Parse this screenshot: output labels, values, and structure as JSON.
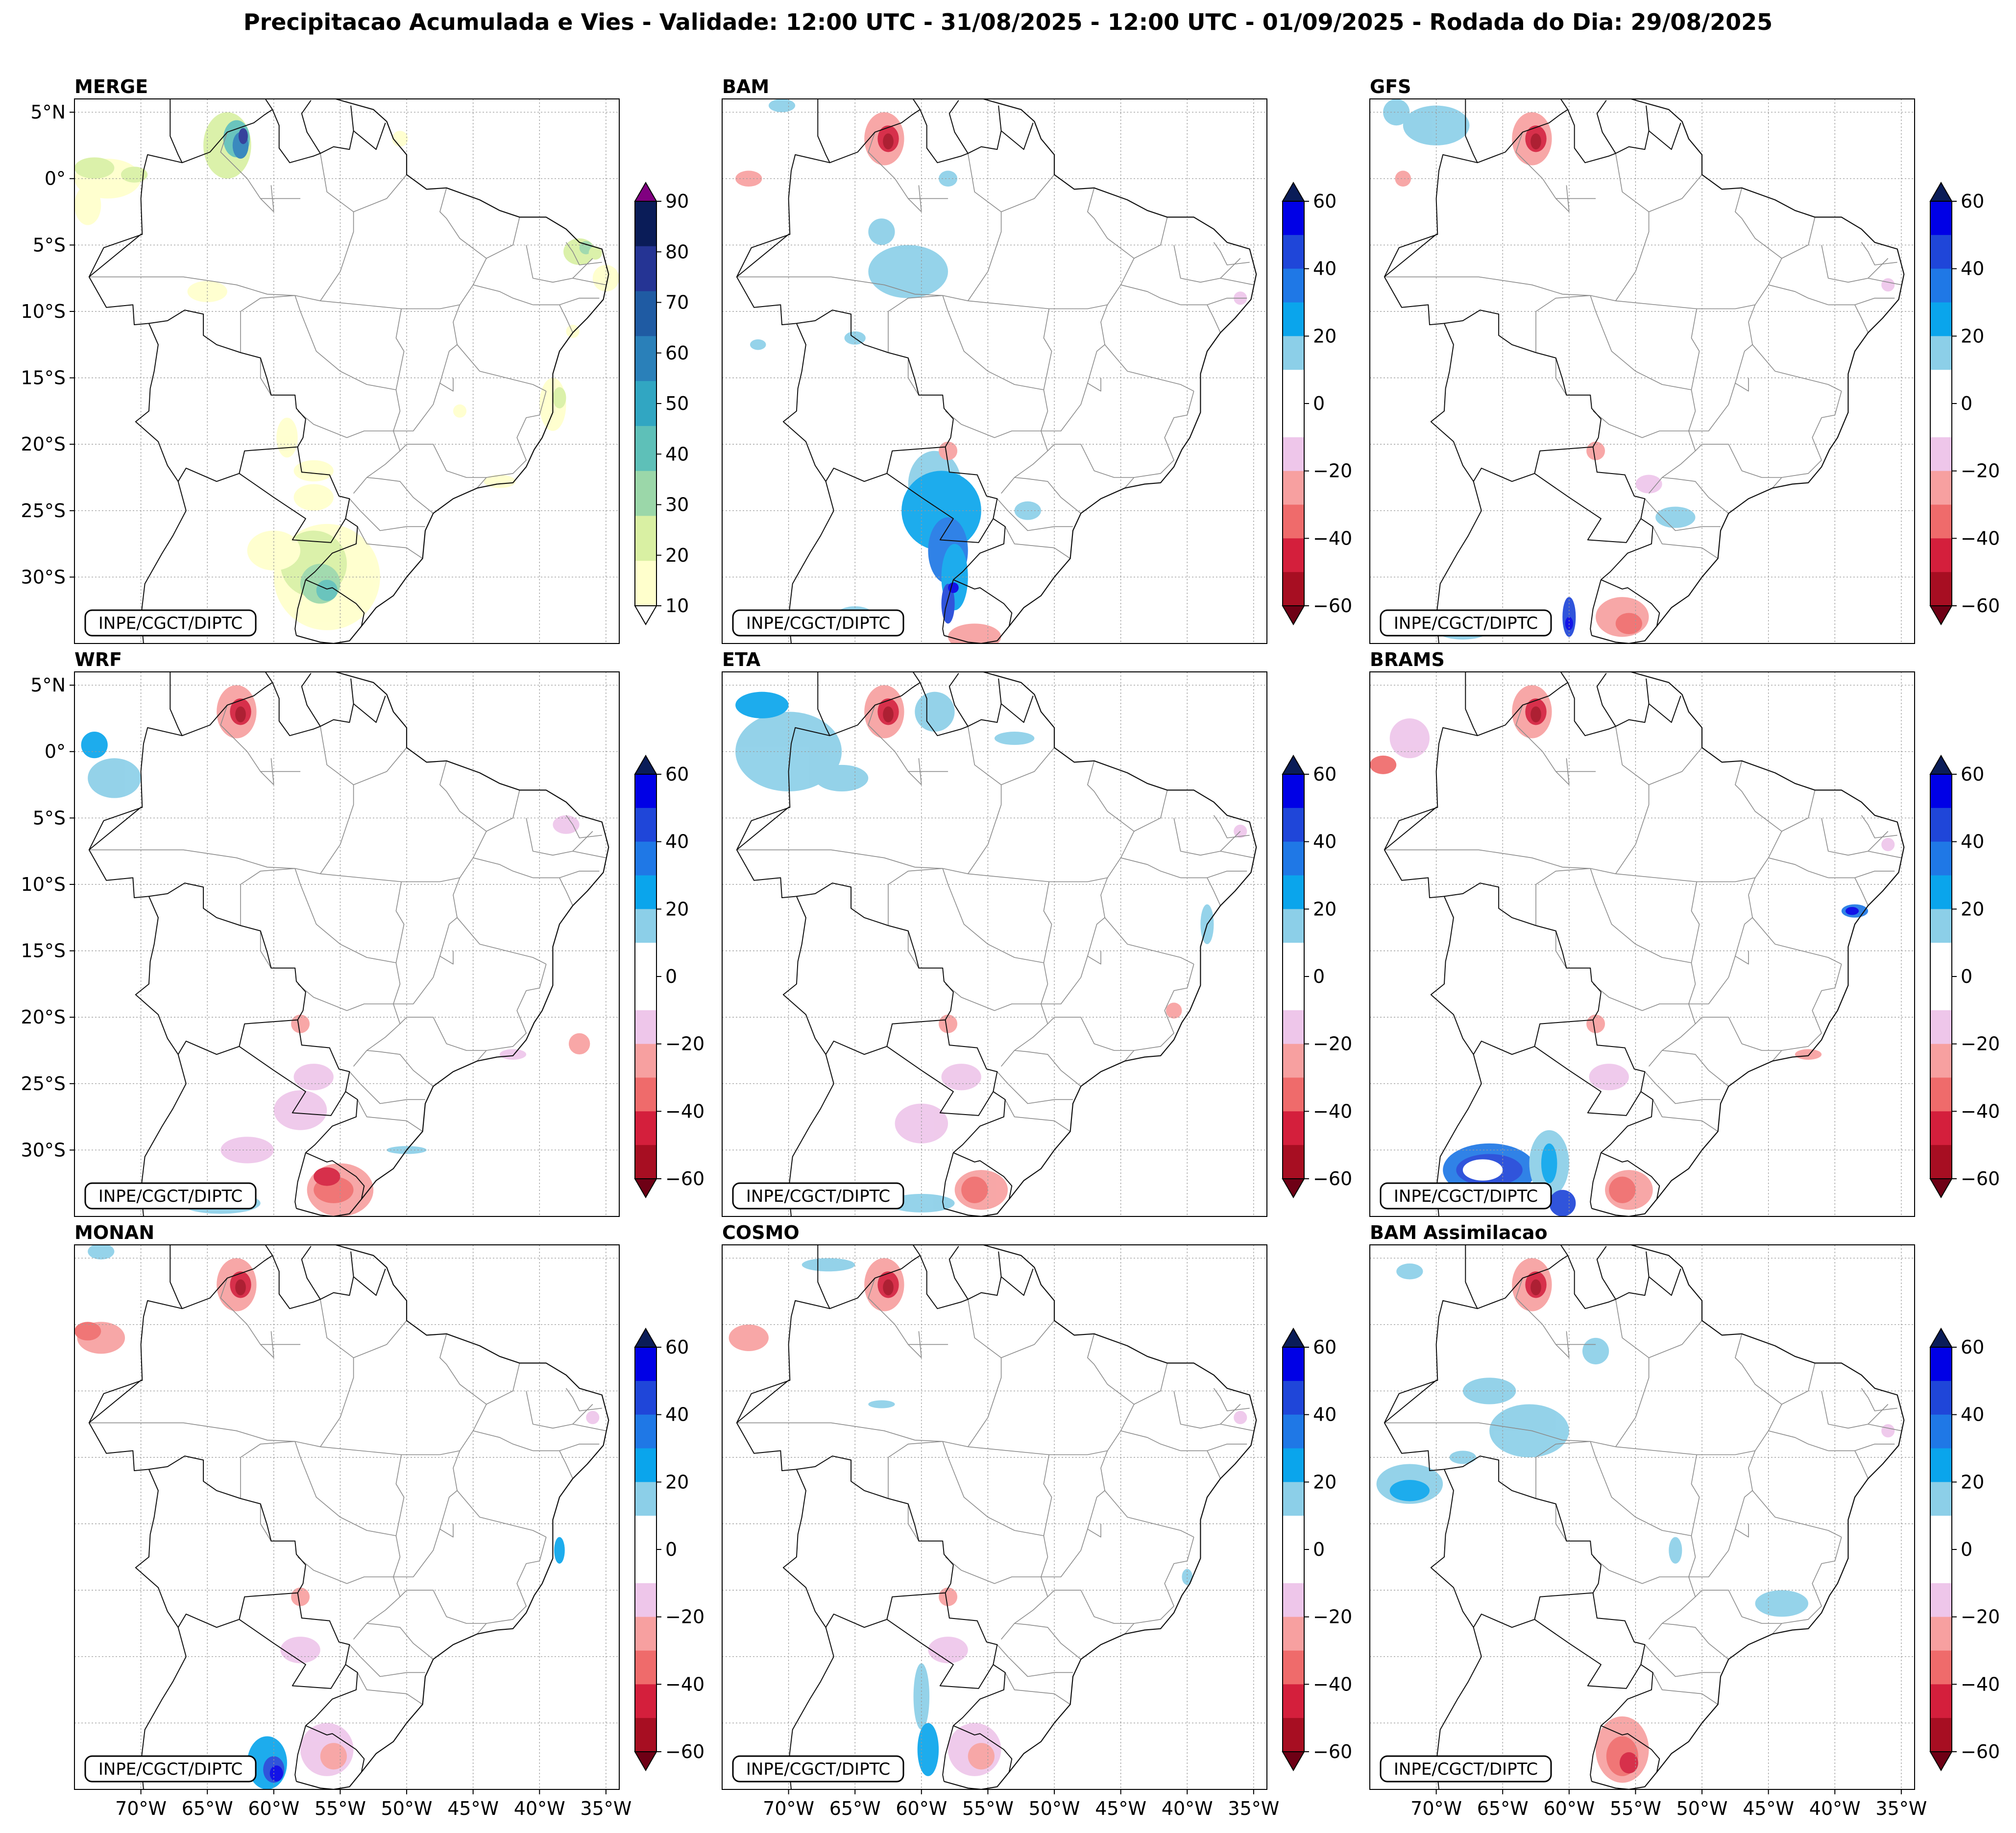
{
  "title": "Precipitacao Acumulada e Vies - Validade: 12:00 UTC - 31/08/2025 - 12:00 UTC - 01/09/2025 - Rodada do Dia: 29/08/2025",
  "credit": "INPE/CGCT/DIPTC",
  "axes": {
    "lat_ticks": [
      "5°N",
      "0°",
      "5°S",
      "10°S",
      "15°S",
      "20°S",
      "25°S",
      "30°S"
    ],
    "lat_values": [
      5,
      0,
      -5,
      -10,
      -15,
      -20,
      -25,
      -30
    ],
    "lon_ticks": [
      "70°W",
      "65°W",
      "60°W",
      "55°W",
      "50°W",
      "45°W",
      "40°W",
      "35°W"
    ],
    "lon_values": [
      -70,
      -65,
      -60,
      -55,
      -50,
      -45,
      -40,
      -35
    ],
    "lon_range": [
      -75,
      -34
    ],
    "lat_range": [
      -35,
      6
    ]
  },
  "colorbars": {
    "precip": {
      "ticks": [
        "90",
        "80",
        "70",
        "60",
        "50",
        "40",
        "30",
        "20",
        "10"
      ],
      "colors": [
        "#ffffcc",
        "#d9f0a3",
        "#9bd7a9",
        "#5ec0b8",
        "#31a6c2",
        "#2a80b9",
        "#1f5ba3",
        "#253494",
        "#0a1c58"
      ],
      "top_color": "#800080"
    },
    "bias": {
      "ticks": [
        "60",
        "40",
        "20",
        "0",
        "−20",
        "−40",
        "−60"
      ],
      "colors": [
        "#0000e6",
        "#1f46d9",
        "#1f78e6",
        "#0aa5ec",
        "#8ccfe8",
        "#ffffff",
        "#ffffff",
        "#eec6ea",
        "#f7a0a0",
        "#ef6b6b",
        "#d41f3c",
        "#a70e22"
      ],
      "top_color": "#0a1c58",
      "bottom_color": "#6e0015"
    }
  },
  "panels": [
    {
      "id": "merge",
      "label": "MERGE",
      "cbar": "precip",
      "show_lat": true,
      "show_lon": false
    },
    {
      "id": "bam",
      "label": "BAM",
      "cbar": "bias",
      "show_lat": false,
      "show_lon": false
    },
    {
      "id": "gfs",
      "label": "GFS",
      "cbar": "bias",
      "show_lat": false,
      "show_lon": false
    },
    {
      "id": "wrf",
      "label": "WRF",
      "cbar": "bias",
      "show_lat": true,
      "show_lon": false
    },
    {
      "id": "eta",
      "label": "ETA",
      "cbar": "bias",
      "show_lat": false,
      "show_lon": false
    },
    {
      "id": "brams",
      "label": "BRAMS",
      "cbar": "bias",
      "show_lat": false,
      "show_lon": false
    },
    {
      "id": "monan",
      "label": "MONAN",
      "cbar": "bias",
      "show_lat": false,
      "show_lon": true
    },
    {
      "id": "cosmo",
      "label": "COSMO",
      "cbar": "bias",
      "show_lat": false,
      "show_lon": true
    },
    {
      "id": "bam-assim",
      "label": "BAM Assimilacao",
      "cbar": "bias",
      "show_lat": false,
      "show_lon": true
    }
  ]
}
